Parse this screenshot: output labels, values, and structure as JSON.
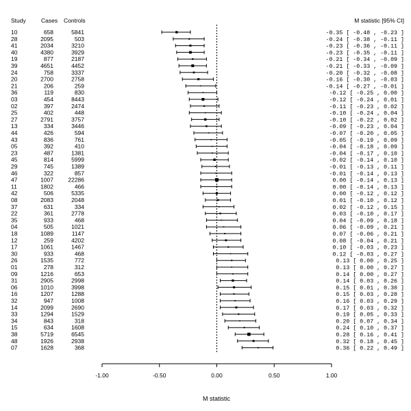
{
  "chart_data": {
    "type": "forest",
    "columns": [
      "Study",
      "Cases",
      "Controls"
    ],
    "estimate_header": "M statistic [95% CI]",
    "xlabel": "M statistic",
    "xlim": [
      -1.0,
      1.0
    ],
    "xticks": [
      -1.0,
      -0.5,
      0.0,
      0.5,
      1.0
    ],
    "xtick_labels": [
      "-1.00",
      "-0.50",
      "0.00",
      "0.50",
      "1.00"
    ],
    "reference_line": 0.0,
    "studies": [
      {
        "study": "10",
        "cases": "658",
        "controls": "5841",
        "m": -0.35,
        "lo": -0.48,
        "hi": -0.23,
        "label": "-0.35 [ -0.48 , -0.23 ]"
      },
      {
        "study": "28",
        "cases": "2095",
        "controls": "503",
        "m": -0.24,
        "lo": -0.38,
        "hi": -0.11,
        "label": "-0.24 [ -0.38 , -0.11 ]"
      },
      {
        "study": "41",
        "cases": "2034",
        "controls": "3210",
        "m": -0.23,
        "lo": -0.36,
        "hi": -0.11,
        "label": "-0.23 [ -0.36 , -0.11 ]"
      },
      {
        "study": "40",
        "cases": "4380",
        "controls": "3929",
        "m": -0.23,
        "lo": -0.35,
        "hi": -0.11,
        "label": "-0.23 [ -0.35 , -0.11 ]"
      },
      {
        "study": "19",
        "cases": "877",
        "controls": "2187",
        "m": -0.21,
        "lo": -0.34,
        "hi": -0.09,
        "label": "-0.21 [ -0.34 , -0.09 ]"
      },
      {
        "study": "39",
        "cases": "4651",
        "controls": "4452",
        "m": -0.21,
        "lo": -0.33,
        "hi": -0.09,
        "label": "-0.21 [ -0.33 , -0.09 ]"
      },
      {
        "study": "24",
        "cases": "758",
        "controls": "3337",
        "m": -0.2,
        "lo": -0.32,
        "hi": -0.08,
        "label": "-0.20 [ -0.32 , -0.08 ]"
      },
      {
        "study": "20",
        "cases": "2700",
        "controls": "2758",
        "m": -0.16,
        "lo": -0.3,
        "hi": -0.03,
        "label": "-0.16 [ -0.30 , -0.03 ]"
      },
      {
        "study": "21",
        "cases": "206",
        "controls": "259",
        "m": -0.14,
        "lo": -0.27,
        "hi": -0.01,
        "label": "-0.14 [ -0.27 , -0.01 ]"
      },
      {
        "study": "36",
        "cases": "119",
        "controls": "830",
        "m": -0.12,
        "lo": -0.25,
        "hi": 0.0,
        "label": "-0.12 [ -0.25 , 0.00 ]"
      },
      {
        "study": "03",
        "cases": "454",
        "controls": "8443",
        "m": -0.12,
        "lo": -0.24,
        "hi": 0.01,
        "label": "-0.12 [ -0.24 , 0.01 ]"
      },
      {
        "study": "02",
        "cases": "397",
        "controls": "2474",
        "m": -0.11,
        "lo": -0.23,
        "hi": 0.02,
        "label": "-0.11 [ -0.23 , 0.02 ]"
      },
      {
        "study": "25",
        "cases": "402",
        "controls": "448",
        "m": -0.1,
        "lo": -0.24,
        "hi": 0.04,
        "label": "-0.10 [ -0.24 , 0.04 ]"
      },
      {
        "study": "27",
        "cases": "2791",
        "controls": "3757",
        "m": -0.1,
        "lo": -0.22,
        "hi": 0.02,
        "label": "-0.10 [ -0.22 , 0.02 ]"
      },
      {
        "study": "13",
        "cases": "334",
        "controls": "3446",
        "m": -0.09,
        "lo": -0.23,
        "hi": 0.04,
        "label": "-0.09 [ -0.23 , 0.04 ]"
      },
      {
        "study": "44",
        "cases": "426",
        "controls": "594",
        "m": -0.07,
        "lo": -0.2,
        "hi": 0.05,
        "label": "-0.07 [ -0.20 , 0.05 ]"
      },
      {
        "study": "43",
        "cases": "836",
        "controls": "761",
        "m": -0.05,
        "lo": -0.19,
        "hi": 0.09,
        "label": "-0.05 [ -0.19 , 0.09 ]"
      },
      {
        "study": "05",
        "cases": "392",
        "controls": "410",
        "m": -0.04,
        "lo": -0.18,
        "hi": 0.09,
        "label": "-0.04 [ -0.18 , 0.09 ]"
      },
      {
        "study": "23",
        "cases": "487",
        "controls": "1381",
        "m": -0.04,
        "lo": -0.17,
        "hi": 0.1,
        "label": "-0.04 [ -0.17 , 0.10 ]"
      },
      {
        "study": "45",
        "cases": "814",
        "controls": "5999",
        "m": -0.02,
        "lo": -0.14,
        "hi": 0.1,
        "label": "-0.02 [ -0.14 , 0.10 ]"
      },
      {
        "study": "29",
        "cases": "745",
        "controls": "1389",
        "m": -0.01,
        "lo": -0.13,
        "hi": 0.11,
        "label": "-0.01 [ -0.13 , 0.11 ]"
      },
      {
        "study": "46",
        "cases": "322",
        "controls": "857",
        "m": -0.01,
        "lo": -0.14,
        "hi": 0.13,
        "label": "-0.01 [ -0.14 , 0.13 ]"
      },
      {
        "study": "47",
        "cases": "1007",
        "controls": "22286",
        "m": 0.0,
        "lo": -0.14,
        "hi": 0.13,
        "label": "0.00 [ -0.14 , 0.13 ]"
      },
      {
        "study": "11",
        "cases": "1802",
        "controls": "466",
        "m": 0.0,
        "lo": -0.14,
        "hi": 0.13,
        "label": "0.00 [ -0.14 , 0.13 ]"
      },
      {
        "study": "42",
        "cases": "506",
        "controls": "5335",
        "m": 0.0,
        "lo": -0.12,
        "hi": 0.12,
        "label": "0.00 [ -0.12 , 0.12 ]"
      },
      {
        "study": "08",
        "cases": "2083",
        "controls": "2048",
        "m": 0.01,
        "lo": -0.1,
        "hi": 0.12,
        "label": "0.01 [ -0.10 , 0.12 ]"
      },
      {
        "study": "37",
        "cases": "631",
        "controls": "334",
        "m": 0.02,
        "lo": -0.12,
        "hi": 0.15,
        "label": "0.02 [ -0.12 , 0.15 ]"
      },
      {
        "study": "22",
        "cases": "361",
        "controls": "2778",
        "m": 0.03,
        "lo": -0.1,
        "hi": 0.17,
        "label": "0.03 [ -0.10 , 0.17 ]"
      },
      {
        "study": "35",
        "cases": "933",
        "controls": "468",
        "m": 0.04,
        "lo": -0.09,
        "hi": 0.18,
        "label": "0.04 [ -0.09 , 0.18 ]"
      },
      {
        "study": "04",
        "cases": "505",
        "controls": "1021",
        "m": 0.06,
        "lo": -0.09,
        "hi": 0.21,
        "label": "0.06 [ -0.09 , 0.21 ]"
      },
      {
        "study": "18",
        "cases": "1089",
        "controls": "1147",
        "m": 0.07,
        "lo": -0.06,
        "hi": 0.21,
        "label": "0.07 [ -0.06 , 0.21 ]"
      },
      {
        "study": "12",
        "cases": "259",
        "controls": "4202",
        "m": 0.08,
        "lo": -0.04,
        "hi": 0.21,
        "label": "0.08 [ -0.04 , 0.21 ]"
      },
      {
        "study": "17",
        "cases": "1061",
        "controls": "1467",
        "m": 0.1,
        "lo": -0.03,
        "hi": 0.23,
        "label": "0.10 [ -0.03 , 0.23 ]"
      },
      {
        "study": "30",
        "cases": "933",
        "controls": "468",
        "m": 0.12,
        "lo": -0.03,
        "hi": 0.27,
        "label": "0.12 [ -0.03 , 0.27 ]"
      },
      {
        "study": "26",
        "cases": "1535",
        "controls": "772",
        "m": 0.13,
        "lo": 0.0,
        "hi": 0.25,
        "label": "0.13 [ 0.00 , 0.25 ]"
      },
      {
        "study": "01",
        "cases": "278",
        "controls": "312",
        "m": 0.13,
        "lo": 0.0,
        "hi": 0.27,
        "label": "0.13 [ 0.00 , 0.27 ]"
      },
      {
        "study": "09",
        "cases": "1216",
        "controls": "653",
        "m": 0.14,
        "lo": 0.0,
        "hi": 0.27,
        "label": "0.14 [ 0.00 , 0.27 ]"
      },
      {
        "study": "31",
        "cases": "2905",
        "controls": "2998",
        "m": 0.14,
        "lo": 0.03,
        "hi": 0.26,
        "label": "0.14 [ 0.03 , 0.26 ]"
      },
      {
        "study": "06",
        "cases": "1010",
        "controls": "3998",
        "m": 0.15,
        "lo": 0.01,
        "hi": 0.3,
        "label": "0.15 [ 0.01 , 0.30 ]"
      },
      {
        "study": "16",
        "cases": "1207",
        "controls": "1288",
        "m": 0.15,
        "lo": 0.03,
        "hi": 0.28,
        "label": "0.15 [ 0.03 , 0.28 ]"
      },
      {
        "study": "32",
        "cases": "947",
        "controls": "1008",
        "m": 0.16,
        "lo": 0.03,
        "hi": 0.29,
        "label": "0.16 [ 0.03 , 0.29 ]"
      },
      {
        "study": "14",
        "cases": "2099",
        "controls": "2690",
        "m": 0.17,
        "lo": 0.03,
        "hi": 0.32,
        "label": "0.17 [ 0.03 , 0.32 ]"
      },
      {
        "study": "33",
        "cases": "1294",
        "controls": "1529",
        "m": 0.19,
        "lo": 0.05,
        "hi": 0.33,
        "label": "0.19 [ 0.05 , 0.33 ]"
      },
      {
        "study": "34",
        "cases": "843",
        "controls": "318",
        "m": 0.2,
        "lo": 0.07,
        "hi": 0.34,
        "label": "0.20 [ 0.07 , 0.34 ]"
      },
      {
        "study": "15",
        "cases": "634",
        "controls": "1608",
        "m": 0.24,
        "lo": 0.1,
        "hi": 0.37,
        "label": "0.24 [ 0.10 , 0.37 ]"
      },
      {
        "study": "38",
        "cases": "5719",
        "controls": "6545",
        "m": 0.28,
        "lo": 0.16,
        "hi": 0.41,
        "label": "0.28 [ 0.16 , 0.41 ]"
      },
      {
        "study": "48",
        "cases": "1926",
        "controls": "2938",
        "m": 0.32,
        "lo": 0.18,
        "hi": 0.45,
        "label": "0.32 [ 0.18 , 0.45 ]"
      },
      {
        "study": "07",
        "cases": "1628",
        "controls": "368",
        "m": 0.36,
        "lo": 0.22,
        "hi": 0.49,
        "label": "0.36 [ 0.22 , 0.49 ]"
      }
    ]
  }
}
